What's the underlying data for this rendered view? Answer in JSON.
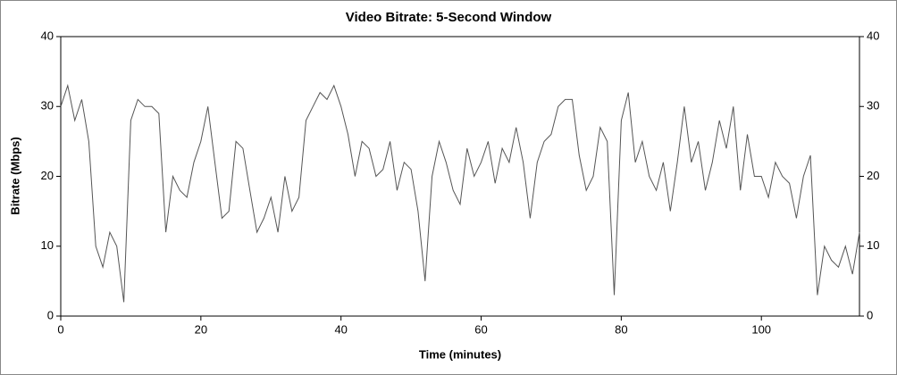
{
  "chart_data": {
    "type": "line",
    "title": "Video Bitrate: 5-Second Window",
    "x_label": "Time (minutes)",
    "y_label": "Bitrate (Mbps)",
    "x": [
      0,
      1,
      2,
      3,
      4,
      5,
      6,
      7,
      8,
      9,
      10,
      11,
      12,
      13,
      14,
      15,
      16,
      17,
      18,
      19,
      20,
      21,
      22,
      23,
      24,
      25,
      26,
      27,
      28,
      29,
      30,
      31,
      32,
      33,
      34,
      35,
      36,
      37,
      38,
      39,
      40,
      41,
      42,
      43,
      44,
      45,
      46,
      47,
      48,
      49,
      50,
      51,
      52,
      53,
      54,
      55,
      56,
      57,
      58,
      59,
      60,
      61,
      62,
      63,
      64,
      65,
      66,
      67,
      68,
      69,
      70,
      71,
      72,
      73,
      74,
      75,
      76,
      77,
      78,
      79,
      80,
      81,
      82,
      83,
      84,
      85,
      86,
      87,
      88,
      89,
      90,
      91,
      92,
      93,
      94,
      95,
      96,
      97,
      98,
      99,
      100,
      101,
      102,
      103,
      104,
      105,
      106,
      107,
      108,
      109,
      110,
      111,
      112,
      113,
      114
    ],
    "series": [
      {
        "name": "Bitrate",
        "color": "#555555",
        "values": [
          30,
          33,
          28,
          31,
          25,
          10,
          7,
          12,
          10,
          2,
          28,
          31,
          30,
          30,
          29,
          12,
          20,
          18,
          17,
          22,
          25,
          30,
          22,
          14,
          15,
          25,
          24,
          18,
          12,
          14,
          17,
          12,
          20,
          15,
          17,
          28,
          30,
          32,
          31,
          33,
          30,
          26,
          20,
          25,
          24,
          20,
          21,
          25,
          18,
          22,
          21,
          15,
          5,
          20,
          25,
          22,
          18,
          16,
          24,
          20,
          22,
          25,
          19,
          24,
          22,
          27,
          22,
          14,
          22,
          25,
          26,
          30,
          31,
          31,
          23,
          18,
          20,
          27,
          25,
          3,
          28,
          32,
          22,
          25,
          20,
          18,
          22,
          15,
          22,
          30,
          22,
          25,
          18,
          22,
          28,
          24,
          30,
          18,
          26,
          20,
          20,
          17,
          22,
          20,
          19,
          14,
          20,
          23,
          3,
          10,
          8,
          7,
          10,
          6,
          12
        ]
      }
    ],
    "xlim": [
      0,
      114
    ],
    "xticks": [
      0,
      20,
      40,
      60,
      80,
      100
    ],
    "ylim": [
      0,
      40
    ],
    "yticks": [
      0,
      10,
      20,
      30,
      40
    ],
    "y2lim": [
      0,
      40
    ],
    "y2ticks": [
      0,
      10,
      20,
      30,
      40
    ]
  }
}
